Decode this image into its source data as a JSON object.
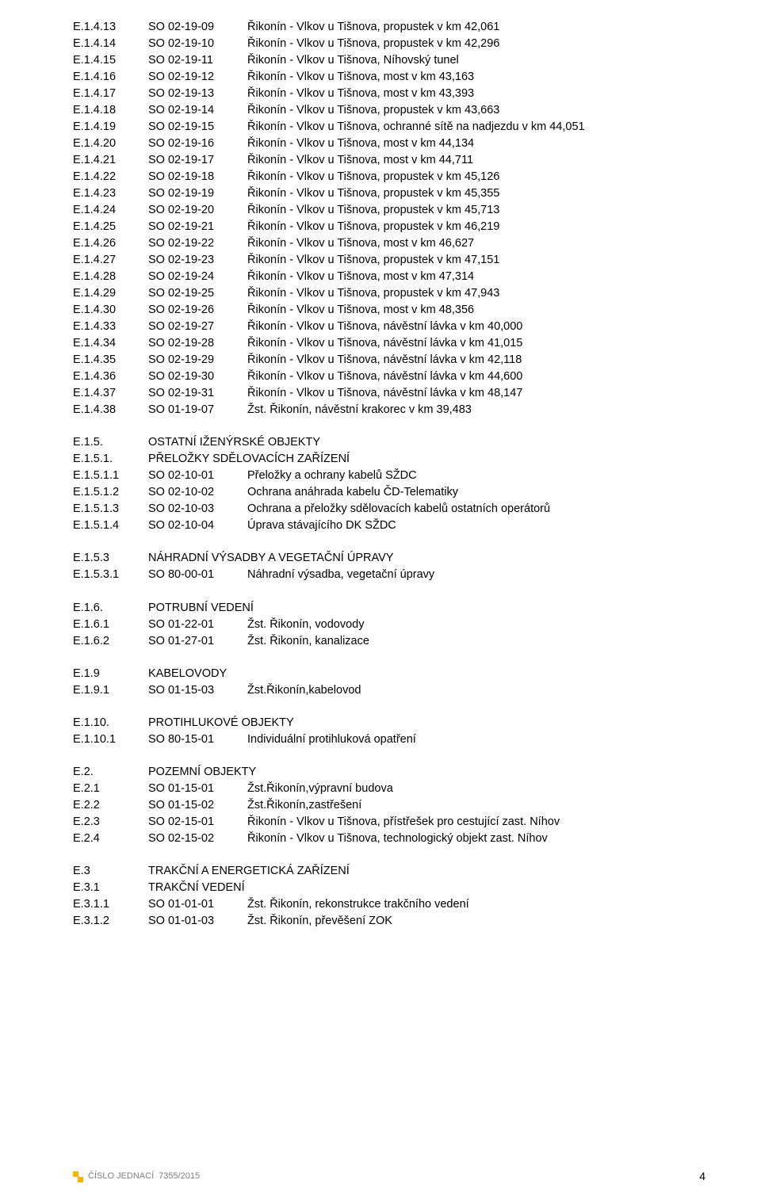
{
  "blocks": [
    {
      "type": "rows",
      "rows": [
        {
          "c1": "E.1.4.13",
          "c2": "SO 02-19-09",
          "c3": "Řikonín - Vlkov u Tišnova, propustek v km 42,061"
        },
        {
          "c1": "E.1.4.14",
          "c2": "SO 02-19-10",
          "c3": "Řikonín - Vlkov u Tišnova, propustek v km 42,296"
        },
        {
          "c1": "E.1.4.15",
          "c2": "SO 02-19-11",
          "c3": "Řikonín - Vlkov u Tišnova, Níhovský tunel"
        },
        {
          "c1": "E.1.4.16",
          "c2": "SO 02-19-12",
          "c3": "Řikonín - Vlkov u Tišnova, most v km 43,163"
        },
        {
          "c1": "E.1.4.17",
          "c2": "SO 02-19-13",
          "c3": "Řikonín - Vlkov u Tišnova, most v km 43,393"
        },
        {
          "c1": "E.1.4.18",
          "c2": "SO 02-19-14",
          "c3": "Řikonín - Vlkov u Tišnova, propustek v km 43,663"
        },
        {
          "c1": "E.1.4.19",
          "c2": "SO 02-19-15",
          "c3": "Řikonín - Vlkov u Tišnova, ochranné sítě na nadjezdu v km 44,051"
        },
        {
          "c1": "E.1.4.20",
          "c2": "SO 02-19-16",
          "c3": "Řikonín - Vlkov u Tišnova, most v km 44,134"
        },
        {
          "c1": "E.1.4.21",
          "c2": "SO 02-19-17",
          "c3": "Řikonín - Vlkov u Tišnova, most v km 44,711"
        },
        {
          "c1": "E.1.4.22",
          "c2": "SO 02-19-18",
          "c3": "Řikonín - Vlkov u Tišnova, propustek v km 45,126"
        },
        {
          "c1": "E.1.4.23",
          "c2": "SO 02-19-19",
          "c3": "Řikonín - Vlkov u Tišnova, propustek v km 45,355"
        },
        {
          "c1": "E.1.4.24",
          "c2": "SO 02-19-20",
          "c3": "Řikonín - Vlkov u Tišnova, propustek v km 45,713"
        },
        {
          "c1": "E.1.4.25",
          "c2": "SO 02-19-21",
          "c3": "Řikonín - Vlkov u Tišnova, propustek v km 46,219"
        },
        {
          "c1": "E.1.4.26",
          "c2": "SO 02-19-22",
          "c3": "Řikonín - Vlkov u Tišnova, most v km 46,627"
        },
        {
          "c1": "E.1.4.27",
          "c2": "SO 02-19-23",
          "c3": "Řikonín - Vlkov u Tišnova, propustek v km 47,151"
        },
        {
          "c1": "E.1.4.28",
          "c2": "SO 02-19-24",
          "c3": "Řikonín - Vlkov u Tišnova, most v km 47,314"
        },
        {
          "c1": "E.1.4.29",
          "c2": "SO 02-19-25",
          "c3": "Řikonín - Vlkov u Tišnova, propustek v km 47,943"
        },
        {
          "c1": "E.1.4.30",
          "c2": "SO 02-19-26",
          "c3": "Řikonín - Vlkov u Tišnova, most v km 48,356"
        },
        {
          "c1": "E.1.4.33",
          "c2": "SO 02-19-27",
          "c3": "Řikonín - Vlkov u Tišnova, návěstní lávka v km 40,000"
        },
        {
          "c1": "E.1.4.34",
          "c2": "SO 02-19-28",
          "c3": "Řikonín - Vlkov u Tišnova, návěstní lávka v km 41,015"
        },
        {
          "c1": "E.1.4.35",
          "c2": "SO 02-19-29",
          "c3": "Řikonín - Vlkov u Tišnova, návěstní lávka v km 42,118"
        },
        {
          "c1": "E.1.4.36",
          "c2": "SO 02-19-30",
          "c3": "Řikonín - Vlkov u Tišnova, návěstní lávka v km 44,600"
        },
        {
          "c1": "E.1.4.37",
          "c2": "SO 02-19-31",
          "c3": "Řikonín - Vlkov u Tišnova, návěstní lávka v km 48,147"
        },
        {
          "c1": "E.1.4.38",
          "c2": "SO 01-19-07",
          "c3": "Žst. Řikonín, návěstní krakorec v km 39,483"
        }
      ]
    },
    {
      "type": "spacer"
    },
    {
      "type": "rows",
      "rows": [
        {
          "c1": "E.1.5.",
          "title": "OSTATNÍ IŽENÝRSKÉ OBJEKTY"
        },
        {
          "c1": "E.1.5.1.",
          "title": "PŘELOŽKY SDĚLOVACÍCH ZAŘÍZENÍ"
        },
        {
          "c1": "E.1.5.1.1",
          "c2": "SO 02-10-01",
          "c3": "Přeložky a ochrany kabelů SŽDC"
        },
        {
          "c1": "E.1.5.1.2",
          "c2": "SO 02-10-02",
          "c3": "Ochrana anáhrada kabelu ČD-Telematiky"
        },
        {
          "c1": "E.1.5.1.3",
          "c2": "SO 02-10-03",
          "c3": "Ochrana a přeložky sdělovacích kabelů ostatních operátorů"
        },
        {
          "c1": "E.1.5.1.4",
          "c2": "SO 02-10-04",
          "c3": "Úprava stávajícího DK SŽDC"
        }
      ]
    },
    {
      "type": "spacer"
    },
    {
      "type": "rows",
      "rows": [
        {
          "c1": "E.1.5.3",
          "title": "NÁHRADNÍ VÝSADBY A VEGETAČNÍ ÚPRAVY"
        },
        {
          "c1": "E.1.5.3.1",
          "c2": "SO 80-00-01",
          "c3": "Náhradní výsadba, vegetační úpravy"
        }
      ]
    },
    {
      "type": "spacer"
    },
    {
      "type": "rows",
      "rows": [
        {
          "c1": "E.1.6.",
          "title": "POTRUBNÍ VEDENÍ"
        },
        {
          "c1": "E.1.6.1",
          "c2": "SO 01-22-01",
          "c3": "Žst. Řikonín, vodovody"
        },
        {
          "c1": "E.1.6.2",
          "c2": "SO 01-27-01",
          "c3": "Žst. Řikonín, kanalizace"
        }
      ]
    },
    {
      "type": "spacer"
    },
    {
      "type": "rows",
      "rows": [
        {
          "c1": "E.1.9",
          "title": "KABELOVODY"
        },
        {
          "c1": "E.1.9.1",
          "c2": "SO 01-15-03",
          "c3": "Žst.Řikonín,kabelovod"
        }
      ]
    },
    {
      "type": "spacer"
    },
    {
      "type": "rows",
      "rows": [
        {
          "c1": "E.1.10.",
          "title": "PROTIHLUKOVÉ OBJEKTY"
        },
        {
          "c1": "E.1.10.1",
          "c2": "SO 80-15-01",
          "c3": "Individuální protihluková opatření"
        }
      ]
    },
    {
      "type": "spacer"
    },
    {
      "type": "rows",
      "rows": [
        {
          "c1": "E.2.",
          "title": "POZEMNÍ OBJEKTY"
        },
        {
          "c1": "E.2.1",
          "c2": "SO 01-15-01",
          "c3": "Žst.Řikonín,výpravní budova"
        },
        {
          "c1": "E.2.2",
          "c2": "SO 01-15-02",
          "c3": "Žst.Řikonín,zastřešení"
        },
        {
          "c1": "E.2.3",
          "c2": "SO 02-15-01",
          "c3": "Řikonín - Vlkov u Tišnova, přístřešek pro cestující zast. Níhov"
        },
        {
          "c1": "E.2.4",
          "c2": "SO 02-15-02",
          "c3": "Řikonín - Vlkov u Tišnova, technologický objekt zast. Níhov"
        }
      ]
    },
    {
      "type": "spacer"
    },
    {
      "type": "rows",
      "rows": [
        {
          "c1": "E.3",
          "title": "TRAKČNÍ A ENERGETICKÁ ZAŘÍZENÍ"
        },
        {
          "c1": "E.3.1",
          "title": "TRAKČNÍ VEDENÍ"
        },
        {
          "c1": "E.3.1.1",
          "c2": "SO 01-01-01",
          "c3": "Žst. Řikonín, rekonstrukce trakčního vedení"
        },
        {
          "c1": "E.3.1.2",
          "c2": "SO 01-01-03",
          "c3": "Žst. Řikonín, převěšení ZOK"
        }
      ]
    }
  ],
  "footer": {
    "left_label": "ČÍSLO JEDNACÍ",
    "left_value": "7355/2015",
    "page_number": "4"
  }
}
